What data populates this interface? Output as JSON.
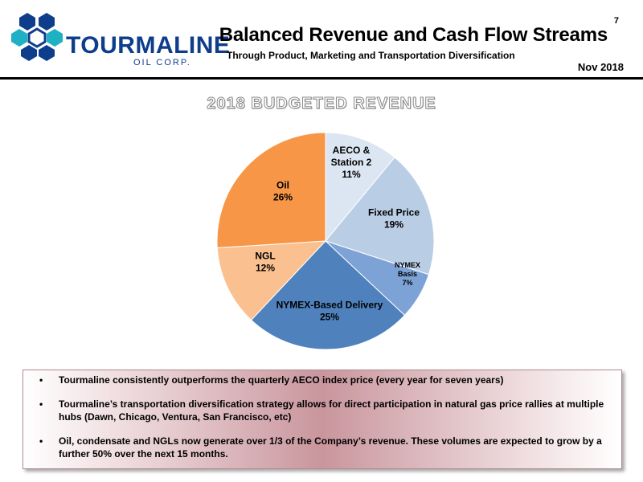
{
  "company": {
    "name": "TOURMALINE",
    "subname": "OIL CORP."
  },
  "header": {
    "page_number": "7",
    "title": "Balanced Revenue and Cash Flow Streams",
    "subtitle": "Through Product, Marketing and Transportation Diversification",
    "date": "Nov 2018"
  },
  "chart_data": {
    "type": "pie",
    "title": "2018 BUDGETED REVENUE",
    "slices": [
      {
        "label_lines": [
          "AECO &",
          "Station 2"
        ],
        "percent_label": "11%",
        "value": 11,
        "color": "#dce6f2"
      },
      {
        "label_lines": [
          "Fixed Price"
        ],
        "percent_label": "19%",
        "value": 19,
        "color": "#b9cde5"
      },
      {
        "label_lines": [
          "NYMEX",
          "Basis"
        ],
        "percent_label": "7%",
        "value": 7,
        "color": "#7da2d6"
      },
      {
        "label_lines": [
          "NYMEX-Based Delivery"
        ],
        "percent_label": "25%",
        "value": 25,
        "color": "#4f81bd"
      },
      {
        "label_lines": [
          "NGL"
        ],
        "percent_label": "12%",
        "value": 12,
        "color": "#fac090"
      },
      {
        "label_lines": [
          "Oil"
        ],
        "percent_label": "26%",
        "value": 26,
        "color": "#f79646"
      }
    ]
  },
  "bullets": [
    "Tourmaline consistently outperforms the quarterly AECO index price (every year for seven years)",
    "Tourmaline’s transportation diversification strategy allows for direct participation in natural gas price rallies at multiple hubs (Dawn, Chicago, Ventura, San Francisco, etc)",
    "Oil, condensate and NGLs now generate over 1/3 of the Company’s revenue. These volumes are expected to grow by a further 50% over the next 15 months."
  ]
}
